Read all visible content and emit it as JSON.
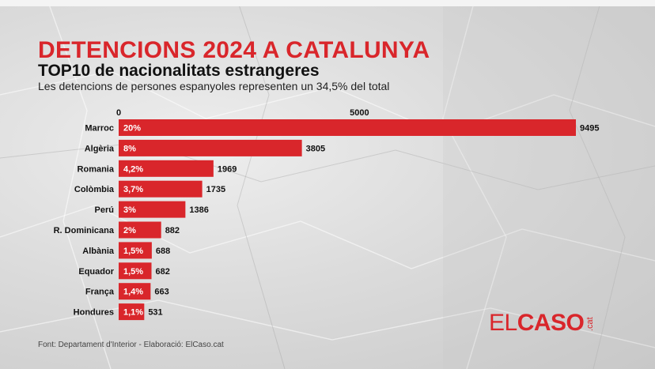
{
  "header": {
    "title": "DETENCIONS 2024 A CATALUNYA",
    "subtitle": "TOP10 de nacionalitats estrangeres",
    "note": "Les detencions de persones espanyoles representen un 34,5% del total"
  },
  "footer": {
    "source": "Font: Departament d'Interior - Elaboració: ElCaso.cat"
  },
  "logo": {
    "prefix": "EL",
    "main": "CASO",
    "tld": ".cat"
  },
  "colors": {
    "bar": "#d9262b",
    "title": "#d9262b"
  },
  "chart_data": {
    "type": "bar",
    "orientation": "horizontal",
    "categories": [
      "Marroc",
      "Algèria",
      "Romania",
      "Colòmbia",
      "Perú",
      "R. Dominicana",
      "Albània",
      "Equador",
      "França",
      "Hondures"
    ],
    "values": [
      9495,
      3805,
      1969,
      1735,
      1386,
      882,
      688,
      682,
      663,
      531
    ],
    "value_labels": [
      "9495",
      "3805",
      "1969",
      "1735",
      "1386",
      "882",
      "688",
      "682",
      "663",
      "531"
    ],
    "percent_labels": [
      "20%",
      "8%",
      "4,2%",
      "3,7%",
      "3%",
      "2%",
      "1,5%",
      "1,5%",
      "1,4%",
      "1,1%"
    ],
    "x_ticks": [
      0,
      5000
    ],
    "x_tick_labels": [
      "0",
      "5000"
    ],
    "xlim": [
      0,
      9550
    ],
    "grid": false,
    "axis_position": "top"
  }
}
